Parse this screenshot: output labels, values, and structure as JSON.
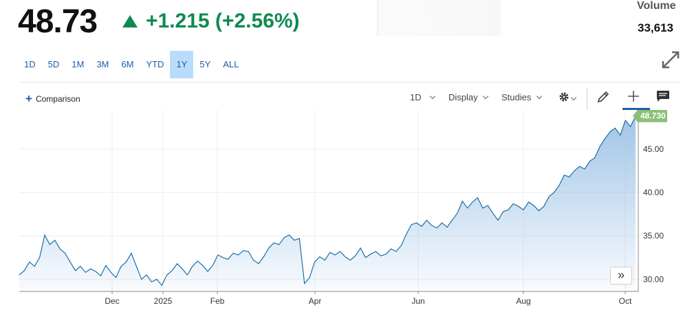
{
  "quote": {
    "price": "48.73",
    "change": "+1.215 (+2.56%)",
    "volume_label": "Volume",
    "volume_value": "33,613"
  },
  "ranges": [
    "1D",
    "5D",
    "1M",
    "3M",
    "6M",
    "YTD",
    "1Y",
    "5Y",
    "ALL"
  ],
  "active_range": "1Y",
  "toolbar": {
    "comparison_label": "Comparison",
    "interval_label": "1D",
    "display_label": "Display",
    "studies_label": "Studies"
  },
  "colors": {
    "up": "#0f8a4f",
    "line": "#1a6fa8",
    "active_range_bg": "#b9dcfb",
    "last_price_badge": "#8cbf7a"
  },
  "chart_data": {
    "type": "area",
    "x_labels": [
      "Dec",
      "2025",
      "Feb",
      "Apr",
      "Jun",
      "Aug",
      "Oct"
    ],
    "y_ticks": [
      "30.00",
      "35.00",
      "40.00",
      "45.00"
    ],
    "ylim": [
      28.6,
      49.5
    ],
    "last_value_label": "48.730",
    "values": [
      30.5,
      31.0,
      32.0,
      31.5,
      32.5,
      35.1,
      34.0,
      34.5,
      33.5,
      33.0,
      32.0,
      31.0,
      31.5,
      30.8,
      31.2,
      30.9,
      30.4,
      31.6,
      30.8,
      30.2,
      31.5,
      32.0,
      33.0,
      31.5,
      30.0,
      30.5,
      29.7,
      30.0,
      29.3,
      30.5,
      31.0,
      31.8,
      31.2,
      30.5,
      31.5,
      32.1,
      31.6,
      30.9,
      31.6,
      32.8,
      32.5,
      32.3,
      33.0,
      32.8,
      33.3,
      33.2,
      32.2,
      31.8,
      32.6,
      33.6,
      34.2,
      34.0,
      34.8,
      35.1,
      34.5,
      34.7,
      29.5,
      30.2,
      32.0,
      32.6,
      32.2,
      33.1,
      32.8,
      33.2,
      32.6,
      32.2,
      32.7,
      33.6,
      32.5,
      32.9,
      33.2,
      32.7,
      32.9,
      33.5,
      33.2,
      33.9,
      35.2,
      36.3,
      36.5,
      36.1,
      36.8,
      36.2,
      35.9,
      36.5,
      36.0,
      36.8,
      37.6,
      39.0,
      38.2,
      38.9,
      39.4,
      38.2,
      38.5,
      37.6,
      36.8,
      37.8,
      38.0,
      38.7,
      38.4,
      38.0,
      38.9,
      38.5,
      37.9,
      38.4,
      39.5,
      40.0,
      40.8,
      42.0,
      41.8,
      42.5,
      43.0,
      42.7,
      43.6,
      44.0,
      45.3,
      46.2,
      47.0,
      47.4,
      46.6,
      48.3,
      47.6,
      48.73
    ]
  }
}
